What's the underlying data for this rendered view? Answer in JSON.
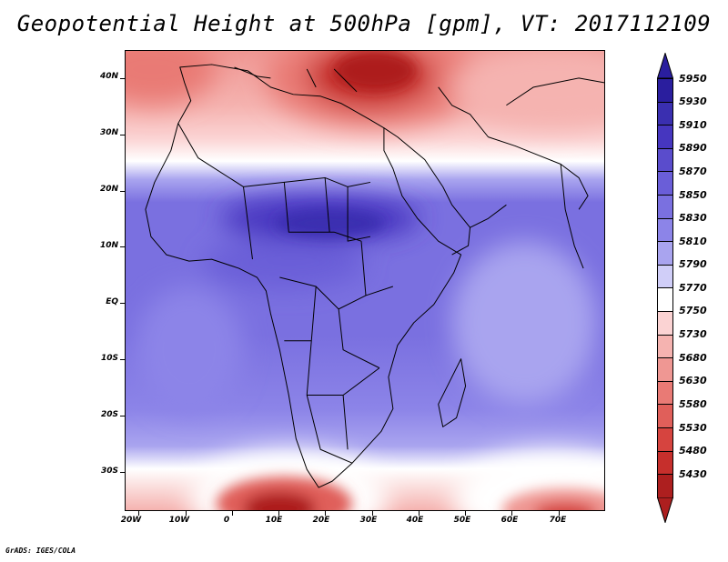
{
  "title": "Geopotential Height at 500hPa [gpm], VT: 2017112109",
  "credit": "GrADS: IGES/COLA",
  "map": {
    "lon_range": [
      -23,
      80
    ],
    "lat_range": [
      -37,
      45
    ],
    "lat_ticks": [
      {
        "value": 40,
        "label": "40N"
      },
      {
        "value": 30,
        "label": "30N"
      },
      {
        "value": 20,
        "label": "20N"
      },
      {
        "value": 10,
        "label": "10N"
      },
      {
        "value": 0,
        "label": "EQ"
      },
      {
        "value": -10,
        "label": "10S"
      },
      {
        "value": -20,
        "label": "20S"
      },
      {
        "value": -30,
        "label": "30S"
      }
    ],
    "lon_ticks": [
      {
        "value": -20,
        "label": "20W"
      },
      {
        "value": -10,
        "label": "10W"
      },
      {
        "value": 0,
        "label": "0"
      },
      {
        "value": 10,
        "label": "10E"
      },
      {
        "value": 20,
        "label": "20E"
      },
      {
        "value": 30,
        "label": "30E"
      },
      {
        "value": 40,
        "label": "40E"
      },
      {
        "value": 50,
        "label": "50E"
      },
      {
        "value": 60,
        "label": "60E"
      },
      {
        "value": 70,
        "label": "70E"
      }
    ]
  },
  "colorbar": {
    "levels": [
      "5950",
      "5930",
      "5910",
      "5890",
      "5870",
      "5850",
      "5830",
      "5810",
      "5790",
      "5770",
      "5750",
      "5730",
      "5680",
      "5630",
      "5580",
      "5530",
      "5480",
      "5430"
    ],
    "colors": [
      "#2a1e9e",
      "#3a2fb0",
      "#4636bf",
      "#5a4ccc",
      "#6a5ed8",
      "#7a70e0",
      "#8c84e8",
      "#a9a4ef",
      "#d0cef8",
      "#ffffff",
      "#fbd3d3",
      "#f5b3b0",
      "#ef9793",
      "#e97a75",
      "#e05f5a",
      "#d6443f",
      "#c62f2c",
      "#ad1f1f"
    ]
  }
}
